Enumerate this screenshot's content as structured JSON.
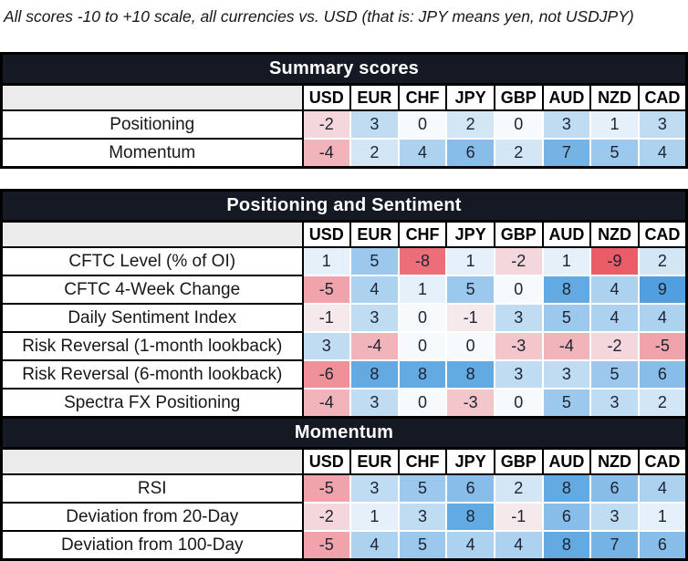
{
  "note": "All scores -10 to +10 scale, all currencies vs. USD (that is: JPY means yen, not USDJPY)",
  "colors": {
    "header_bg": "#141923",
    "header_text": "#ffffff",
    "corner_bg": "#ebebeb",
    "cell_text": "#1b2433",
    "border_black": "#000000",
    "cell_separator": "#ffffff",
    "scale_negative": "#e94b57",
    "scale_zero": "#f7fafd",
    "scale_positive": "#3e95db"
  },
  "chart_data": [
    {
      "type": "heatmap",
      "block": 1,
      "title": "Summary scores",
      "columns": [
        "USD",
        "EUR",
        "CHF",
        "JPY",
        "GBP",
        "AUD",
        "NZD",
        "CAD"
      ],
      "scale_range": [
        -10,
        10
      ],
      "rows": [
        {
          "label": "Positioning",
          "values": [
            -2,
            3,
            0,
            2,
            0,
            3,
            1,
            3
          ]
        },
        {
          "label": "Momentum",
          "values": [
            -4,
            2,
            4,
            6,
            2,
            7,
            5,
            4
          ]
        }
      ]
    },
    {
      "type": "heatmap",
      "block": 2,
      "title": "Positioning and Sentiment",
      "columns": [
        "USD",
        "EUR",
        "CHF",
        "JPY",
        "GBP",
        "AUD",
        "NZD",
        "CAD"
      ],
      "scale_range": [
        -10,
        10
      ],
      "rows": [
        {
          "label": "CFTC Level (% of OI)",
          "values": [
            1,
            5,
            -8,
            1,
            -2,
            1,
            -9,
            2
          ]
        },
        {
          "label": "CFTC 4-Week Change",
          "values": [
            -5,
            4,
            1,
            5,
            0,
            8,
            4,
            9
          ]
        },
        {
          "label": "Daily Sentiment Index",
          "values": [
            -1,
            3,
            0,
            -1,
            3,
            5,
            4,
            4
          ]
        },
        {
          "label": "Risk Reversal (1-month lookback)",
          "values": [
            3,
            -4,
            0,
            0,
            -3,
            -4,
            -2,
            -5
          ]
        },
        {
          "label": "Risk Reversal (6-month lookback)",
          "values": [
            -6,
            8,
            8,
            8,
            3,
            3,
            5,
            6
          ]
        },
        {
          "label": "Spectra FX Positioning",
          "values": [
            -4,
            3,
            0,
            -3,
            0,
            5,
            3,
            2
          ]
        }
      ]
    },
    {
      "type": "heatmap",
      "block": 2,
      "title": "Momentum",
      "columns": [
        "USD",
        "EUR",
        "CHF",
        "JPY",
        "GBP",
        "AUD",
        "NZD",
        "CAD"
      ],
      "scale_range": [
        -10,
        10
      ],
      "rows": [
        {
          "label": "RSI",
          "values": [
            -5,
            3,
            5,
            6,
            2,
            8,
            6,
            4
          ]
        },
        {
          "label": "Deviation from 20-Day",
          "values": [
            -2,
            1,
            3,
            8,
            -1,
            6,
            3,
            1
          ]
        },
        {
          "label": "Deviation from 100-Day",
          "values": [
            -5,
            4,
            5,
            4,
            4,
            8,
            7,
            6
          ]
        }
      ]
    }
  ]
}
